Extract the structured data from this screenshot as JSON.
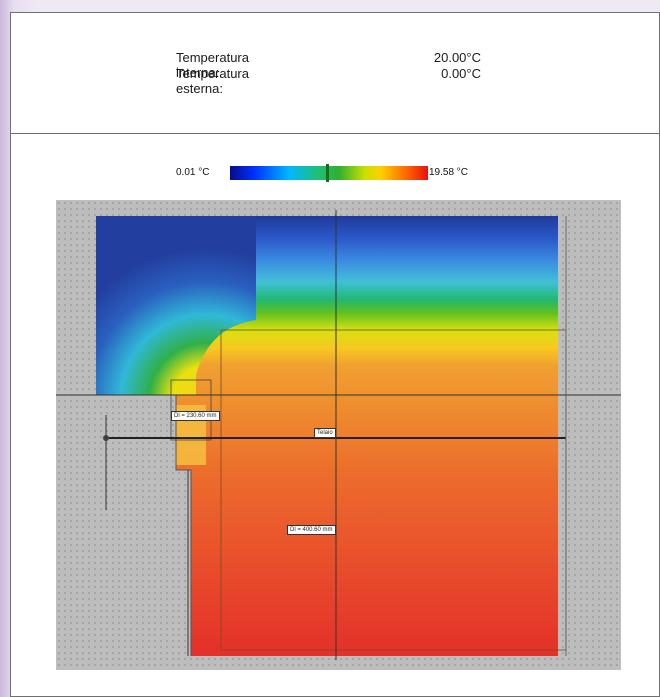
{
  "header": {
    "internal_label": "Temperatura interna:",
    "internal_value": "20.00°C",
    "external_label": "Temperatura esterna:",
    "external_value": "0.00°C"
  },
  "legend": {
    "min_label": "0.01 °C",
    "max_label": "19.58 °C",
    "min_value": 0.01,
    "max_value": 19.58,
    "colormap": [
      "#0a0a8a",
      "#0030ff",
      "#00b8ff",
      "#20c070",
      "#30b030",
      "#c8e000",
      "#ffd000",
      "#ff7000",
      "#e81010"
    ]
  },
  "diagram": {
    "dim_top": "Dl = 230.60 mm",
    "center_label": "Telaio",
    "dim_bottom": "Dl = 400.60 mm"
  }
}
